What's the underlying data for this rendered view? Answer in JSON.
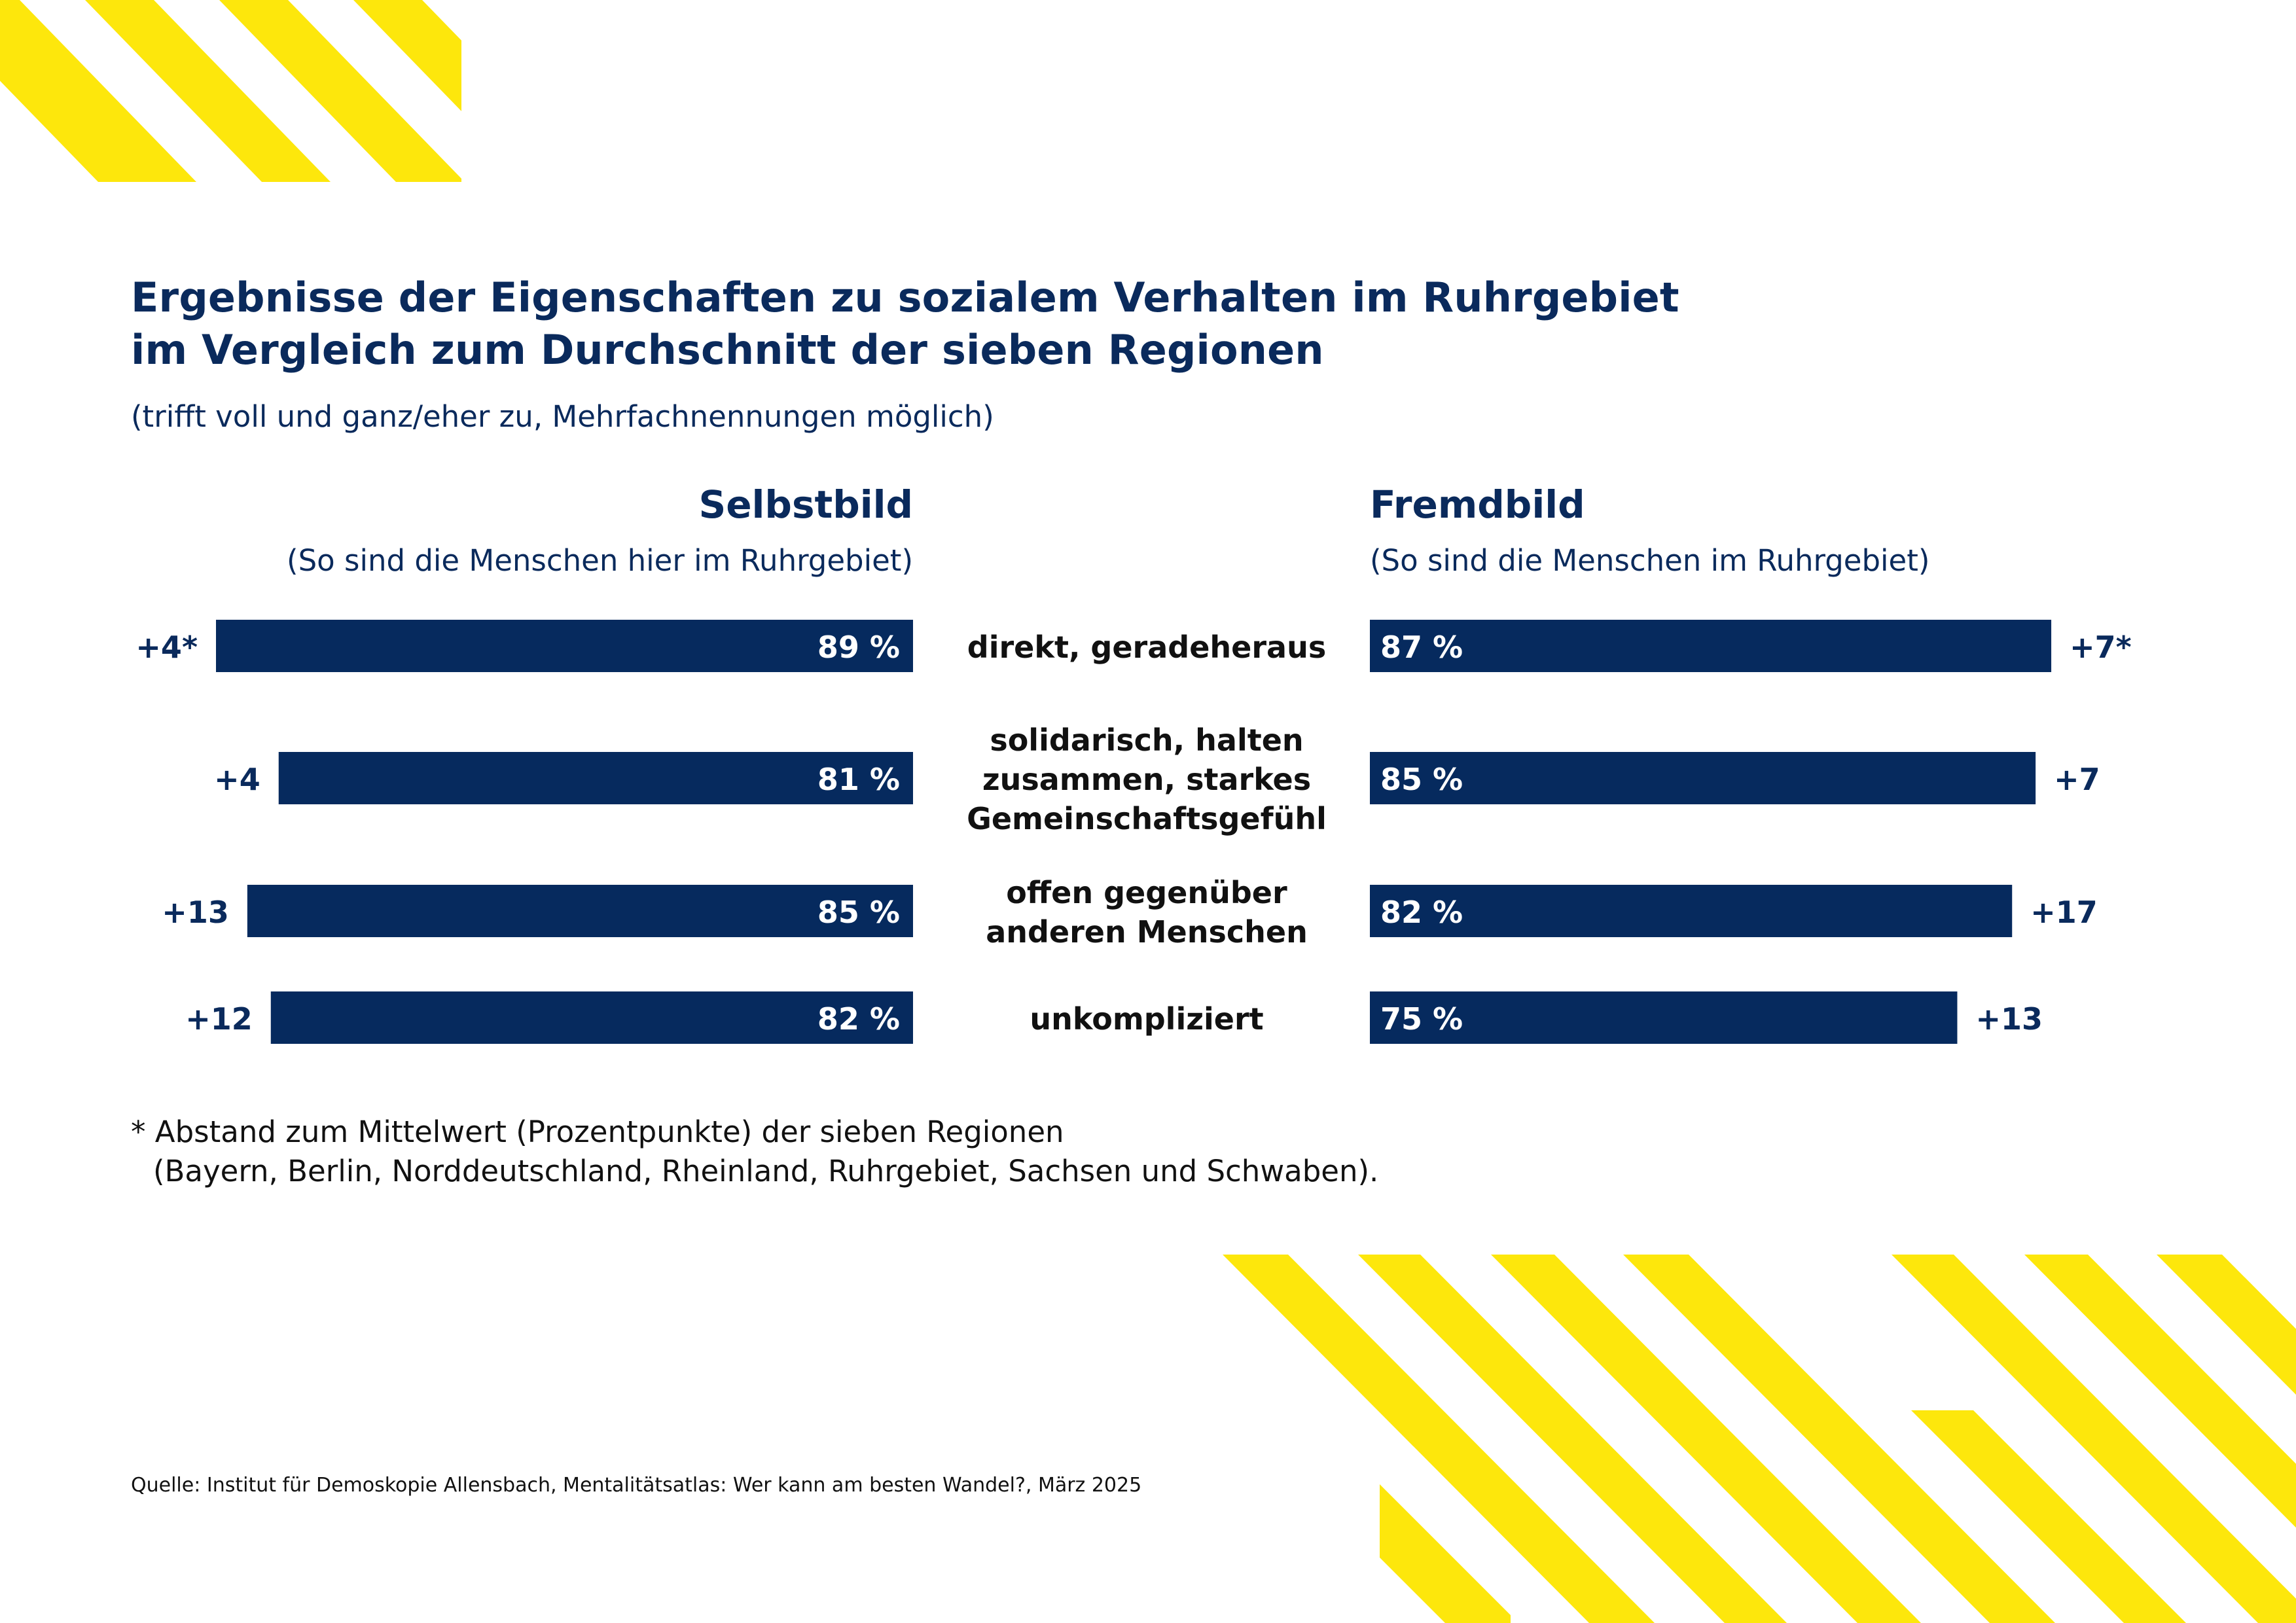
{
  "header": {
    "title_line1": "Ergebnisse der Eigenschaften zu sozialem Verhalten im Ruhrgebiet",
    "title_line2": "im Vergleich zum Durchschnitt der sieben Regionen",
    "subtitle": "(trifft voll und ganz/eher zu, Mehrfachnennungen möglich)"
  },
  "colors": {
    "bar": "#062a5e",
    "text": "#0a2a5c",
    "accent_stripes": "#fde70c"
  },
  "chart_data": {
    "type": "bar",
    "orientation": "horizontal-butterfly",
    "xlim": [
      0,
      100
    ],
    "unit": "%",
    "categories": [
      [
        "direkt, geradeheraus"
      ],
      [
        "solidarisch, halten",
        "zusammen, starkes",
        "Gemeinschaftsgefühl"
      ],
      [
        "offen gegenüber",
        "anderen Menschen"
      ],
      [
        "unkompliziert"
      ]
    ],
    "series": [
      {
        "name": "Selbstbild",
        "subtitle": "(So sind die Menschen hier im Ruhrgebiet)",
        "values": [
          89,
          81,
          85,
          82
        ],
        "value_labels": [
          "89 %",
          "81 %",
          "85 %",
          "82 %"
        ],
        "differences": [
          "+4*",
          "+4",
          "+13",
          "+12"
        ]
      },
      {
        "name": "Fremdbild",
        "subtitle": "(So sind die Menschen im Ruhrgebiet)",
        "values": [
          87,
          85,
          82,
          75
        ],
        "value_labels": [
          "87 %",
          "85 %",
          "82 %",
          "75 %"
        ],
        "differences": [
          "+7*",
          "+7",
          "+17",
          "+13"
        ]
      }
    ]
  },
  "footnote": {
    "line1": "* Abstand zum Mittelwert (Prozentpunkte) der sieben Regionen",
    "line2": "(Bayern, Berlin, Norddeutschland, Rheinland, Ruhrgebiet, Sachsen und Schwaben)."
  },
  "source": "Quelle: Institut für Demoskopie Allensbach, Mentalitätsatlas: Wer kann am besten Wandel?, März 2025"
}
